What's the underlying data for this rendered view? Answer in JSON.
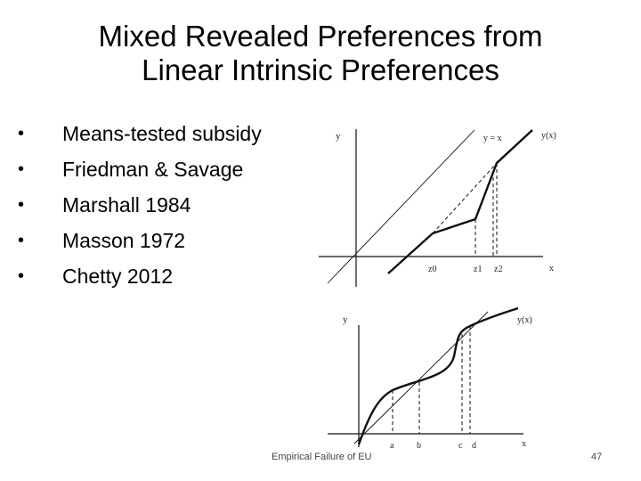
{
  "slide": {
    "title_line1": "Mixed Revealed Preferences from",
    "title_line2": "Linear Intrinsic Preferences",
    "bullets": [
      "Means-tested subsidy",
      "Friedman & Savage",
      "Marshall 1984",
      "Masson 1972",
      "Chetty 2012"
    ],
    "bullet_marker": "•",
    "footer_text": "Empirical Failure of EU",
    "page_number": "47"
  },
  "top_figure": {
    "y_label": "y",
    "identity_label": "y = x",
    "curve_label": "y(x)",
    "x_label": "x",
    "ticks": [
      "z0",
      "z1",
      "z2"
    ]
  },
  "bottom_figure": {
    "y_label": "y",
    "curve_label": "y(x)",
    "x_label": "x",
    "ticks": [
      "a",
      "b",
      "c",
      "d"
    ]
  }
}
